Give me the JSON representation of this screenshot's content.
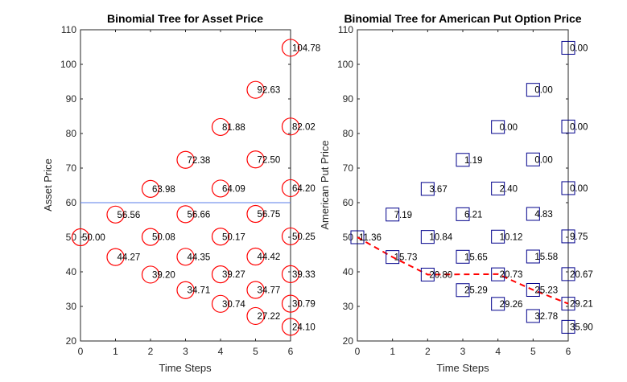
{
  "chart_data": [
    {
      "type": "scatter",
      "title": "Binomial Tree for Asset Price",
      "xlabel": "Time Steps",
      "ylabel": "Asset Price",
      "xlim": [
        0,
        6
      ],
      "ylim": [
        20,
        110
      ],
      "xticks": [
        "0",
        "1",
        "2",
        "3",
        "4",
        "5",
        "6"
      ],
      "yticks": [
        "20",
        "30",
        "40",
        "50",
        "60",
        "70",
        "80",
        "90",
        "100",
        "110"
      ],
      "grid": false,
      "marker": "circle",
      "marker_color": "#ff0000",
      "reference_line": {
        "y": 60,
        "color": "#5a7ee8"
      },
      "points": [
        {
          "x": 0,
          "y": 50.0,
          "label": "50.00"
        },
        {
          "x": 1,
          "y": 56.56,
          "label": "56.56"
        },
        {
          "x": 1,
          "y": 44.27,
          "label": "44.27"
        },
        {
          "x": 2,
          "y": 63.98,
          "label": "63.98"
        },
        {
          "x": 2,
          "y": 50.08,
          "label": "50.08"
        },
        {
          "x": 2,
          "y": 39.2,
          "label": "39.20"
        },
        {
          "x": 3,
          "y": 72.38,
          "label": "72.38"
        },
        {
          "x": 3,
          "y": 56.66,
          "label": "56.66"
        },
        {
          "x": 3,
          "y": 44.35,
          "label": "44.35"
        },
        {
          "x": 3,
          "y": 34.71,
          "label": "34.71"
        },
        {
          "x": 4,
          "y": 81.88,
          "label": "81.88"
        },
        {
          "x": 4,
          "y": 64.09,
          "label": "64.09"
        },
        {
          "x": 4,
          "y": 50.17,
          "label": "50.17"
        },
        {
          "x": 4,
          "y": 39.27,
          "label": "39.27"
        },
        {
          "x": 4,
          "y": 30.74,
          "label": "30.74"
        },
        {
          "x": 5,
          "y": 92.63,
          "label": "92.63"
        },
        {
          "x": 5,
          "y": 72.5,
          "label": "72.50"
        },
        {
          "x": 5,
          "y": 56.75,
          "label": "56.75"
        },
        {
          "x": 5,
          "y": 44.42,
          "label": "44.42"
        },
        {
          "x": 5,
          "y": 34.77,
          "label": "34.77"
        },
        {
          "x": 5,
          "y": 27.22,
          "label": "27.22"
        },
        {
          "x": 6,
          "y": 104.78,
          "label": "104.78"
        },
        {
          "x": 6,
          "y": 82.02,
          "label": "82.02"
        },
        {
          "x": 6,
          "y": 64.2,
          "label": "64.20"
        },
        {
          "x": 6,
          "y": 50.25,
          "label": "50.25"
        },
        {
          "x": 6,
          "y": 39.33,
          "label": "39.33"
        },
        {
          "x": 6,
          "y": 30.79,
          "label": "30.79"
        },
        {
          "x": 6,
          "y": 24.1,
          "label": "24.10"
        }
      ]
    },
    {
      "type": "scatter",
      "title": "Binomial Tree for American Put Option Price",
      "xlabel": "Time Steps",
      "ylabel": "American Put Price",
      "xlim": [
        0,
        6
      ],
      "ylim": [
        20,
        110
      ],
      "xticks": [
        "0",
        "1",
        "2",
        "3",
        "4",
        "5",
        "6"
      ],
      "yticks": [
        "20",
        "30",
        "40",
        "50",
        "60",
        "70",
        "80",
        "90",
        "100",
        "110"
      ],
      "grid": false,
      "marker": "square",
      "marker_color": "#00008b",
      "path": {
        "style": "dashed",
        "color": "#ff0000",
        "points": [
          [
            0,
            50.0
          ],
          [
            1,
            44.27
          ],
          [
            2,
            39.2
          ],
          [
            3,
            39.27
          ],
          [
            4,
            39.33
          ],
          [
            5,
            34.77
          ],
          [
            6,
            30.79
          ]
        ]
      },
      "points": [
        {
          "x": 0,
          "y": 50.0,
          "label": "11.36"
        },
        {
          "x": 1,
          "y": 56.56,
          "label": "7.19"
        },
        {
          "x": 1,
          "y": 44.27,
          "label": "15.73"
        },
        {
          "x": 2,
          "y": 63.98,
          "label": "3.67"
        },
        {
          "x": 2,
          "y": 50.08,
          "label": "10.84"
        },
        {
          "x": 2,
          "y": 39.2,
          "label": "20.80"
        },
        {
          "x": 3,
          "y": 72.38,
          "label": "1.19"
        },
        {
          "x": 3,
          "y": 56.66,
          "label": "6.21"
        },
        {
          "x": 3,
          "y": 44.35,
          "label": "15.65"
        },
        {
          "x": 3,
          "y": 34.71,
          "label": "25.29"
        },
        {
          "x": 4,
          "y": 81.88,
          "label": "0.00"
        },
        {
          "x": 4,
          "y": 64.09,
          "label": "2.40"
        },
        {
          "x": 4,
          "y": 50.17,
          "label": "10.12"
        },
        {
          "x": 4,
          "y": 39.27,
          "label": "20.73"
        },
        {
          "x": 4,
          "y": 30.74,
          "label": "29.26"
        },
        {
          "x": 5,
          "y": 92.63,
          "label": "0.00"
        },
        {
          "x": 5,
          "y": 72.5,
          "label": "0.00"
        },
        {
          "x": 5,
          "y": 56.75,
          "label": "4.83"
        },
        {
          "x": 5,
          "y": 44.42,
          "label": "15.58"
        },
        {
          "x": 5,
          "y": 34.77,
          "label": "25.23"
        },
        {
          "x": 5,
          "y": 27.22,
          "label": "32.78"
        },
        {
          "x": 6,
          "y": 104.78,
          "label": "0.00"
        },
        {
          "x": 6,
          "y": 82.02,
          "label": "0.00"
        },
        {
          "x": 6,
          "y": 64.2,
          "label": "0.00"
        },
        {
          "x": 6,
          "y": 50.25,
          "label": "9.75"
        },
        {
          "x": 6,
          "y": 39.33,
          "label": "20.67"
        },
        {
          "x": 6,
          "y": 30.79,
          "label": "29.21"
        },
        {
          "x": 6,
          "y": 24.1,
          "label": "35.90"
        }
      ]
    }
  ]
}
